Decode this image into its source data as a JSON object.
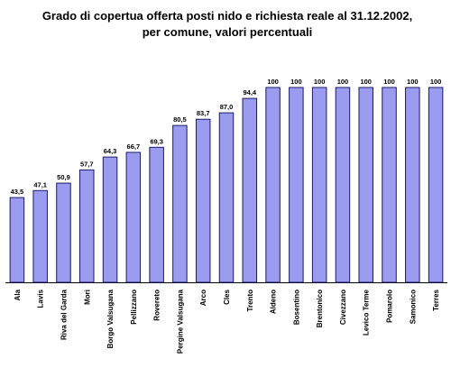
{
  "chart_data": {
    "type": "bar",
    "title_lines": [
      "Grado di copertua offerta posti nido e richiesta reale al 31.12.2002,",
      "per comune, valori percentuali"
    ],
    "categories": [
      "Ala",
      "Lavis",
      "Riva del Garda",
      "Mori",
      "Borgo Valsugana",
      "Pellizzano",
      "Rovereto",
      "Pergine Valsugana",
      "Arco",
      "Cles",
      "Trento",
      "Aldeno",
      "Bosentino",
      "Brentonico",
      "Civezzano",
      "Levico Terme",
      "Pomarolo",
      "Samonico",
      "Terres"
    ],
    "values": [
      43.5,
      47.1,
      50.9,
      57.7,
      64.3,
      66.7,
      69.3,
      80.5,
      83.7,
      87.0,
      94.4,
      100,
      100,
      100,
      100,
      100,
      100,
      100,
      100
    ],
    "value_labels": [
      "43,5",
      "47,1",
      "50,9",
      "57,7",
      "64,3",
      "66,7",
      "69,3",
      "80,5",
      "83,7",
      "87,0",
      "94,4",
      "100",
      "100",
      "100",
      "100",
      "100",
      "100",
      "100",
      "100"
    ],
    "ylim": [
      0,
      100
    ],
    "xlabel": "",
    "ylabel": "",
    "grid": false,
    "legend": "none",
    "bar_color": "#9b9bf0",
    "bar_border_color": "#1a1a66"
  }
}
